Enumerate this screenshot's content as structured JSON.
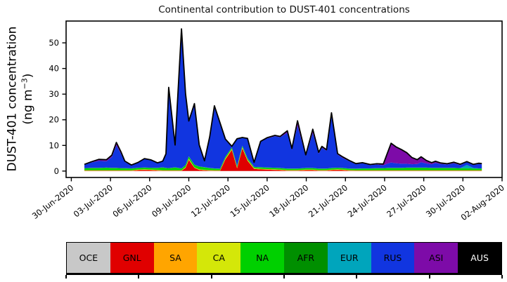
{
  "figure": {
    "title": "Continental contribution to DUST-401 concentrations"
  },
  "y_axis": {
    "label_line1": "DUST-401 concentration",
    "label_line2_pre": "(ng m",
    "label_sup": "−3",
    "label_line2_post": ")"
  },
  "legend": {
    "entries": [
      {
        "label": "OCE",
        "color": "#c8c8c8",
        "text_color": "#000000"
      },
      {
        "label": "GNL",
        "color": "#e00000",
        "text_color": "#000000"
      },
      {
        "label": "SA",
        "color": "#ffa500",
        "text_color": "#000000"
      },
      {
        "label": "CA",
        "color": "#d4e709",
        "text_color": "#000000"
      },
      {
        "label": "NA",
        "color": "#00d000",
        "text_color": "#000000"
      },
      {
        "label": "AFR",
        "color": "#008f00",
        "text_color": "#000000"
      },
      {
        "label": "EUR",
        "color": "#00a5bc",
        "text_color": "#000000"
      },
      {
        "label": "RUS",
        "color": "#1135e0",
        "text_color": "#000000"
      },
      {
        "label": "ASI",
        "color": "#7d0ba8",
        "text_color": "#000000"
      },
      {
        "label": "AUS",
        "color": "#000000",
        "text_color": "#ffffff"
      }
    ]
  },
  "chart_data": {
    "type": "area",
    "stacked": true,
    "title": "Continental contribution to DUST-401 concentrations",
    "xlabel": "",
    "ylabel": "DUST-401 concentration (ng m−3)",
    "x_units": "days since 30-Jun-2020",
    "xlim": [
      -0.4,
      33
    ],
    "ylim": [
      -2.5,
      58.5
    ],
    "grid": false,
    "legend_position": "bottom",
    "outline_color": "#000000",
    "y_ticks": [
      0,
      10,
      20,
      30,
      40,
      50
    ],
    "x_tick_positions": [
      0,
      3,
      6,
      9,
      12,
      15,
      18,
      21,
      24,
      27,
      30,
      33
    ],
    "x_tick_labels": [
      "30-Jun-2020",
      "03-Jul-2020",
      "06-Jul-2020",
      "09-Jul-2020",
      "12-Jul-2020",
      "15-Jul-2020",
      "18-Jul-2020",
      "21-Jul-2020",
      "24-Jul-2020",
      "27-Jul-2020",
      "30-Jul-2020",
      "02-Aug-2020"
    ],
    "x": [
      1.0,
      1.5,
      2.1,
      2.7,
      3.1,
      3.45,
      3.8,
      4.1,
      4.6,
      5.1,
      5.6,
      6.1,
      6.6,
      7.0,
      7.25,
      7.46,
      7.95,
      8.44,
      8.75,
      9.0,
      9.43,
      9.8,
      10.2,
      10.6,
      10.96,
      11.4,
      11.8,
      12.3,
      12.7,
      13.1,
      13.5,
      14.0,
      14.5,
      15.0,
      15.6,
      16.0,
      16.55,
      16.9,
      17.33,
      17.96,
      18.5,
      18.95,
      19.2,
      19.55,
      19.93,
      20.4,
      20.8,
      21.3,
      21.8,
      22.3,
      22.9,
      23.4,
      23.9,
      24.2,
      24.5,
      24.9,
      25.3,
      25.7,
      26.1,
      26.5,
      26.8,
      27.2,
      27.6,
      27.9,
      28.3,
      28.8,
      29.3,
      29.8,
      30.3,
      30.8,
      31.2,
      31.45
    ],
    "series": [
      {
        "name": "OCE",
        "constant": 0.05
      },
      {
        "name": "GNL",
        "values": [
          0.05,
          0.05,
          0.05,
          0.05,
          0.05,
          0.05,
          0.05,
          0.05,
          0.05,
          0.3,
          0.4,
          0.3,
          0.15,
          0.05,
          0.05,
          0.05,
          0.05,
          0.05,
          1.2,
          4.3,
          1.2,
          0.4,
          0.2,
          0.1,
          0.05,
          0.05,
          4.5,
          8.2,
          1.0,
          8.8,
          4.0,
          0.8,
          0.6,
          0.5,
          0.4,
          0.3,
          0.1,
          0.1,
          0.1,
          0.3,
          0.3,
          0.1,
          0.1,
          0.1,
          0.3,
          0.4,
          0.3,
          0.1,
          0.05,
          0.05,
          0.05,
          0.05,
          0.05,
          0.05,
          0.05,
          0.05,
          0.05,
          0.05,
          0.05,
          0.05,
          0.05,
          0.05,
          0.05,
          0.05,
          0.05,
          0.05,
          0.05,
          0.05,
          0.05,
          0.05,
          0.05,
          0.05
        ]
      },
      {
        "name": "SA",
        "constant": 0.15
      },
      {
        "name": "CA",
        "values": [
          0.08,
          0.08,
          0.08,
          0.08,
          0.08,
          0.08,
          0.08,
          0.08,
          0.08,
          0.08,
          0.08,
          0.08,
          0.08,
          0.08,
          0.08,
          0.08,
          0.08,
          0.08,
          0.15,
          0.3,
          0.08,
          0.08,
          0.08,
          0.08,
          0.08,
          0.08,
          0.25,
          0.25,
          0.2,
          0.25,
          0.2,
          0.1,
          0.08,
          0.08,
          0.08,
          0.08,
          0.08,
          0.08,
          0.08,
          0.08,
          0.08,
          0.08,
          0.08,
          0.08,
          0.08,
          0.08,
          0.08,
          0.08,
          0.08,
          0.08,
          0.08,
          0.08,
          0.08,
          0.08,
          0.08,
          0.08,
          0.08,
          0.08,
          0.08,
          0.08,
          0.08,
          0.08,
          0.08,
          0.08,
          0.08,
          0.08,
          0.08,
          0.08,
          0.08,
          0.08,
          0.08,
          0.08
        ]
      },
      {
        "name": "NA",
        "values": [
          0.7,
          0.8,
          0.8,
          0.9,
          0.8,
          0.8,
          0.7,
          0.7,
          0.6,
          0.6,
          0.6,
          0.6,
          0.7,
          1.0,
          0.8,
          0.7,
          1.0,
          0.6,
          0.7,
          0.8,
          0.9,
          1.0,
          0.9,
          0.7,
          0.6,
          0.5,
          0.5,
          0.45,
          0.5,
          0.5,
          0.5,
          0.4,
          0.5,
          0.5,
          0.5,
          0.5,
          0.5,
          0.5,
          0.5,
          0.5,
          0.5,
          0.5,
          0.5,
          0.5,
          0.5,
          0.5,
          0.5,
          0.5,
          0.5,
          0.6,
          0.6,
          0.7,
          0.7,
          0.8,
          0.8,
          0.8,
          0.8,
          0.9,
          0.9,
          0.9,
          0.9,
          0.9,
          0.8,
          0.8,
          0.8,
          0.8,
          0.8,
          0.7,
          0.7,
          0.6,
          0.6,
          0.6
        ]
      },
      {
        "name": "AFR",
        "constant": 0.08
      },
      {
        "name": "EUR",
        "values": [
          0.05,
          0.05,
          0.05,
          0.05,
          0.05,
          0.05,
          0.05,
          0.05,
          0.05,
          0.05,
          0.05,
          0.05,
          0.05,
          0.05,
          0.05,
          0.05,
          0.05,
          0.05,
          0.05,
          0.05,
          0.05,
          0.05,
          0.05,
          0.05,
          0.05,
          0.05,
          0.05,
          0.05,
          0.05,
          0.05,
          0.05,
          0.05,
          0.05,
          0.05,
          0.05,
          0.05,
          0.05,
          0.05,
          0.05,
          0.05,
          0.05,
          0.05,
          0.05,
          0.05,
          0.05,
          0.05,
          0.05,
          0.05,
          0.05,
          0.05,
          0.05,
          0.05,
          0.05,
          0.05,
          0.05,
          0.05,
          0.05,
          0.05,
          0.05,
          0.05,
          0.05,
          0.05,
          0.05,
          0.05,
          0.05,
          0.05,
          0.05,
          0.05,
          1.3,
          0.2,
          0.05,
          0.05
        ]
      },
      {
        "name": "RUS",
        "values": [
          1.3,
          2.05,
          2.7,
          2.45,
          4.2,
          8.75,
          5.6,
          2.45,
          1.2,
          1.95,
          3.35,
          2.95,
          1.9,
          2.35,
          5.4,
          31.4,
          8.6,
          54.3,
          27.6,
          13.7,
          23.7,
          8.3,
          2.4,
          12.0,
          23.9,
          17.3,
          6.7,
          0.4,
          10.5,
          3.1,
          7.6,
          1.7,
          9.9,
          11.3,
          12.3,
          12.0,
          13.9,
          7.3,
          16.7,
          4.7,
          13.7,
          5.8,
          8.1,
          6.9,
          20.4,
          5.1,
          3.9,
          2.8,
          1.75,
          2.0,
          1.3,
          1.4,
          1.1,
          1.6,
          2.1,
          1.8,
          1.6,
          1.5,
          1.3,
          1.4,
          2.1,
          1.6,
          1.4,
          1.9,
          1.5,
          1.3,
          1.8,
          1.2,
          1.1,
          1.2,
          1.7,
          1.55
        ]
      },
      {
        "name": "ASI",
        "values": [
          0.15,
          0.25,
          0.6,
          0.65,
          0.75,
          1.15,
          0.75,
          0.3,
          0.1,
          0.1,
          0.1,
          0.1,
          0.05,
          0.05,
          0.05,
          0.1,
          0.1,
          0.1,
          0.1,
          0.1,
          0.1,
          0.1,
          0.1,
          0.15,
          0.5,
          0.5,
          0.2,
          0.05,
          0.1,
          0.1,
          0.1,
          0.05,
          0.2,
          0.3,
          0.3,
          0.3,
          0.8,
          0.5,
          1.9,
          0.4,
          1.4,
          0.5,
          0.5,
          0.4,
          1.1,
          0.4,
          0.4,
          0.3,
          0.2,
          0.2,
          0.2,
          0.3,
          0.5,
          3.9,
          7.5,
          6.3,
          5.5,
          4.3,
          2.6,
          1.7,
          2.1,
          1.2,
          0.65,
          0.65,
          0.4,
          0.3,
          0.4,
          0.3,
          0.2,
          0.2,
          0.3,
          0.3
        ]
      },
      {
        "name": "AUS",
        "constant": 0
      }
    ]
  }
}
